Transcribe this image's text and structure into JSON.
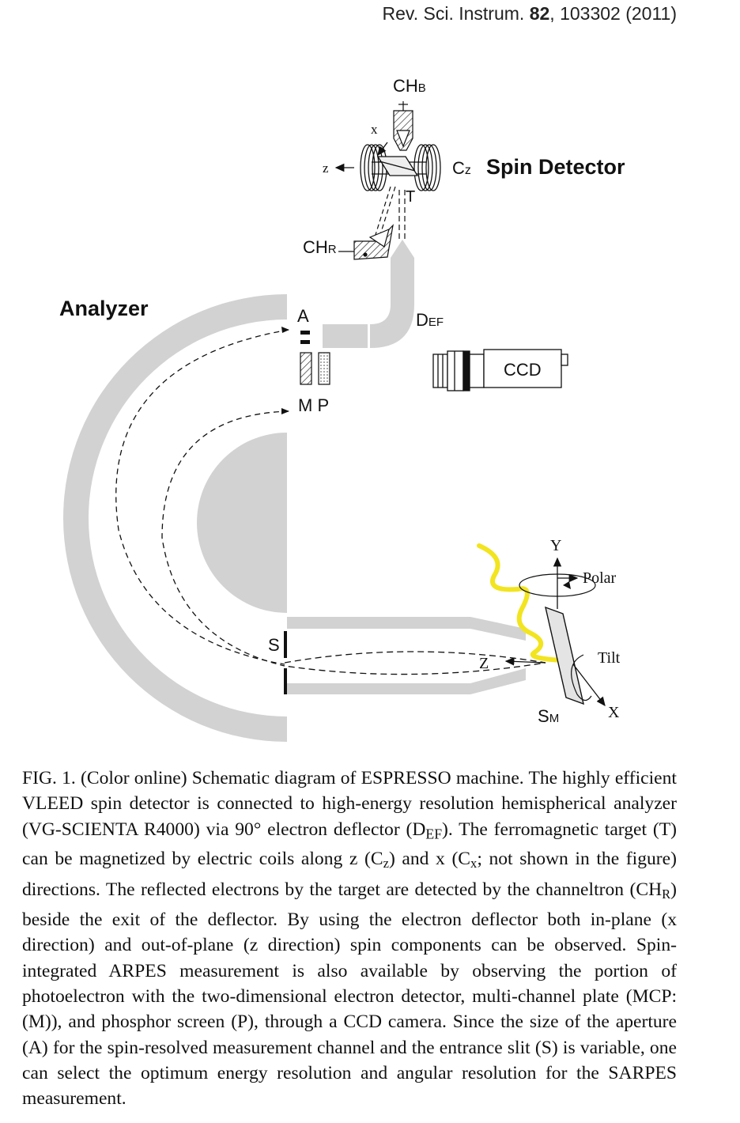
{
  "header": {
    "journal": "Rev. Sci. Instrum.",
    "volume": "82",
    "article": ", 103302 (2011)"
  },
  "figure": {
    "labels": {
      "chb_main": "CH",
      "chb_sub": "B",
      "chr_main": "CH",
      "chr_sub": "R",
      "x_small": "x",
      "z_small": "z",
      "cz_main": "C",
      "cz_sub": "z",
      "t": "T",
      "spin_detector": "Spin Detector",
      "analyzer": "Analyzer",
      "a": "A",
      "def_main": "D",
      "def_sub": "EF",
      "ccd": "CCD",
      "mp": "M P",
      "s": "S",
      "y_axis": "Y",
      "polar": "Polar",
      "tilt": "Tilt",
      "z_axis": "Z",
      "x_axis": "X",
      "sm_main": "S",
      "sm_sub": "M"
    },
    "colors": {
      "gray": "#d2d2d2",
      "yellow": "#f2e41f",
      "line": "#222222"
    }
  },
  "caption": {
    "p1": "FIG. 1. (Color online) Schematic diagram of ESPRESSO machine. The highly efficient VLEED spin detector is connected to high-energy resolution hemispherical analyzer (VG-SCIENTA R4000) via 90° electron deflector (D",
    "def_sub": "EF",
    "p2": "). The ferromagnetic target (T) can be magnetized by electric coils along z (C",
    "z_sub": "z",
    "p3": ") and x (C",
    "x_sub": "x",
    "p4": "; not shown in the figure) directions. The reflected electrons by the target are detected by the channeltron (CH",
    "r_sub": "R",
    "p5": ") beside the exit of the deflector. By using the electron deflector both in-plane (x direction) and out-of-plane (z direction) spin components can be observed. Spin-integrated ARPES measurement is also available by observing the portion of photoelectron with the two-dimensional electron detector, multi-channel plate (MCP: (M)), and phosphor screen (P), through a CCD camera. Since the size of the aperture (A) for the spin-resolved measurement channel and the entrance slit (S) is variable, one can select the optimum energy resolution and angular resolution for the SARPES measurement."
  }
}
